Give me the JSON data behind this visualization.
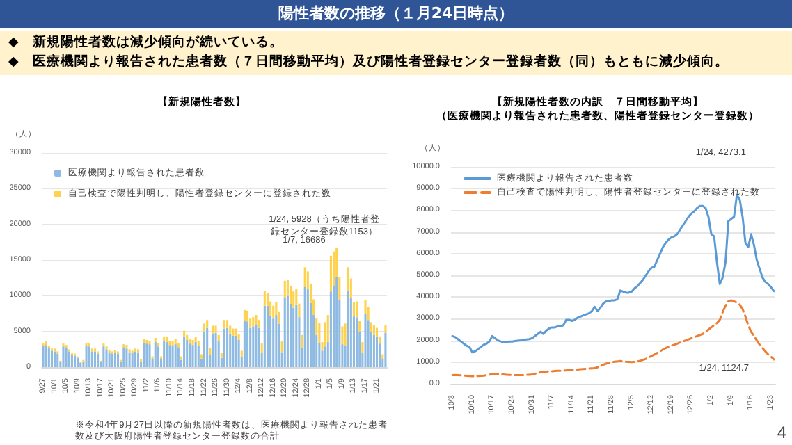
{
  "chart_data": [
    {
      "type": "other",
      "title": "陽性者数の推移（１月24日時点）",
      "annotations": [
        "◆　新規陽性者数は減少傾向が続いている。",
        "◆　医療機関より報告された患者数（７日間移動平均）及び陽性者登録センター登録者数（同）もともに減少傾向。"
      ]
    },
    {
      "type": "bar",
      "title": "【新規陽性者数】",
      "ylabel": "（人）",
      "stacked": true,
      "grid": "y",
      "legend": "top left",
      "ylim": [
        0,
        30000
      ],
      "yticks": [
        0,
        5000,
        10000,
        15000,
        20000,
        25000,
        30000
      ],
      "categories": [
        "9/27",
        null,
        null,
        null,
        "10/1",
        null,
        null,
        null,
        "10/5",
        null,
        null,
        null,
        "10/9",
        null,
        null,
        null,
        "10/13",
        null,
        null,
        null,
        "10/17",
        null,
        null,
        null,
        "10/21",
        null,
        null,
        null,
        "10/25",
        null,
        null,
        null,
        "10/29",
        null,
        null,
        null,
        "11/2",
        null,
        null,
        null,
        "11/6",
        null,
        null,
        null,
        "11/10",
        null,
        null,
        null,
        "11/14",
        null,
        null,
        null,
        "11/18",
        null,
        null,
        null,
        "11/22",
        null,
        null,
        null,
        "11/26",
        null,
        null,
        null,
        "11/30",
        null,
        null,
        null,
        "12/4",
        null,
        null,
        null,
        "12/8",
        null,
        null,
        null,
        "12/12",
        null,
        null,
        null,
        "12/16",
        null,
        null,
        null,
        "12/20",
        null,
        null,
        null,
        "12/24",
        null,
        null,
        null,
        "12/28",
        null,
        null,
        null,
        "1/1",
        null,
        null,
        null,
        "1/5",
        null,
        null,
        null,
        "1/9",
        null,
        null,
        null,
        "1/13",
        null,
        null,
        null,
        "1/17",
        null,
        null,
        null,
        "1/21",
        null,
        null,
        null
      ],
      "series": [
        {
          "name": "医療機関より報告された患者数",
          "color": "#8fbbe3",
          "values": [
            3000,
            3100,
            2700,
            2300,
            2200,
            1900,
            700,
            2900,
            2700,
            2200,
            1700,
            1600,
            1300,
            600,
            800,
            3000,
            2900,
            2200,
            2200,
            1900,
            700,
            2900,
            2500,
            2100,
            1900,
            2000,
            1900,
            800,
            2800,
            2600,
            2100,
            2000,
            2200,
            2100,
            800,
            3400,
            3300,
            3200,
            1100,
            3500,
            2900,
            1100,
            3600,
            3500,
            3100,
            3000,
            3200,
            2800,
            1000,
            4300,
            3800,
            3300,
            3100,
            3500,
            3000,
            1200,
            5000,
            5500,
            1700,
            4700,
            4800,
            3600,
            1300,
            5400,
            5500,
            4700,
            4400,
            4400,
            3800,
            1500,
            6500,
            6400,
            5500,
            5700,
            6000,
            5500,
            2000,
            8600,
            8600,
            7200,
            6800,
            7300,
            6100,
            2100,
            9800,
            10000,
            8900,
            8300,
            8800,
            7000,
            2700,
            11200,
            10900,
            9000,
            7300,
            4500,
            3400,
            2300,
            2900,
            3500,
            10600,
            11300,
            12600,
            9500,
            3200,
            3000,
            10700,
            9700,
            7100,
            7000,
            5000,
            2000,
            7500,
            6600,
            4900,
            4500,
            4300,
            3300,
            1100,
            4775
          ]
        },
        {
          "name": "自己検査で陽性判明し、陽性者登録センターに登録された数",
          "color": "#ffd24d",
          "values": [
            300,
            500,
            300,
            300,
            400,
            300,
            200,
            400,
            400,
            300,
            300,
            300,
            200,
            200,
            200,
            400,
            400,
            400,
            400,
            300,
            200,
            400,
            400,
            300,
            300,
            400,
            300,
            200,
            400,
            500,
            400,
            300,
            400,
            400,
            300,
            500,
            500,
            500,
            400,
            600,
            500,
            400,
            700,
            800,
            600,
            600,
            700,
            600,
            500,
            800,
            700,
            700,
            700,
            700,
            700,
            600,
            1100,
            1100,
            1000,
            1100,
            1000,
            900,
            700,
            1200,
            1100,
            1100,
            1000,
            1000,
            800,
            800,
            1500,
            1500,
            1300,
            1300,
            1300,
            1100,
            1300,
            2100,
            1800,
            2000,
            1800,
            1800,
            1700,
            1600,
            2300,
            2200,
            2500,
            2300,
            2200,
            1900,
            1800,
            2800,
            2500,
            2700,
            2200,
            2400,
            2800,
            1200,
            3400,
            3800,
            5000,
            4900,
            4086,
            3100,
            2500,
            3100,
            3300,
            2700,
            2000,
            2200,
            1500,
            1500,
            1900,
            1800,
            1400,
            1400,
            1200,
            1000,
            700,
            1153
          ]
        }
      ],
      "annotations": [
        "1/7, 16686",
        "1/24, 5928（うち陽性者登録センター登録数1153）",
        "※令和4年9月27日以降の新規陽性者数は、医療機関より報告された患者数及び大阪府陽性者登録センター登録数の合計"
      ]
    },
    {
      "type": "line",
      "title": "【新規陽性者数の内訳　７日間移動平均】",
      "subtitle": "（医療機関より報告された患者数、陽性者登録センター登録数）",
      "ylabel": "（人）",
      "grid": "y",
      "legend": "top left",
      "ylim": [
        0,
        10000
      ],
      "yticks": [
        {
          "value": 0,
          "label": "0.0"
        },
        {
          "value": 1000,
          "label": "1000.0"
        },
        {
          "value": 2000,
          "label": "2000.0"
        },
        {
          "value": 3000,
          "label": "3000.0"
        },
        {
          "value": 4000,
          "label": "4000.0"
        },
        {
          "value": 5000,
          "label": "5000.0"
        },
        {
          "value": 6000,
          "label": "6000.0"
        },
        {
          "value": 7000,
          "label": "7000.0"
        },
        {
          "value": 8000,
          "label": "8000.0"
        },
        {
          "value": 9000,
          "label": "9000.0"
        },
        {
          "value": 10000,
          "label": "10000.0"
        }
      ],
      "categories": [
        "10/3",
        null,
        null,
        null,
        null,
        null,
        null,
        "10/10",
        null,
        null,
        null,
        null,
        null,
        null,
        "10/17",
        null,
        null,
        null,
        null,
        null,
        null,
        "10/24",
        null,
        null,
        null,
        null,
        null,
        null,
        "10/31",
        null,
        null,
        null,
        null,
        null,
        null,
        "11/7",
        null,
        null,
        null,
        null,
        null,
        null,
        "11/14",
        null,
        null,
        null,
        null,
        null,
        null,
        "11/21",
        null,
        null,
        null,
        null,
        null,
        null,
        "11/28",
        null,
        null,
        null,
        null,
        null,
        null,
        "12/5",
        null,
        null,
        null,
        null,
        null,
        null,
        "12/12",
        null,
        null,
        null,
        null,
        null,
        null,
        "12/19",
        null,
        null,
        null,
        null,
        null,
        null,
        "12/26",
        null,
        null,
        null,
        null,
        null,
        null,
        "1/2",
        null,
        null,
        null,
        null,
        null,
        null,
        "1/9",
        null,
        null,
        null,
        null,
        null,
        null,
        "1/16",
        null,
        null,
        null,
        null,
        null,
        null,
        "1/23",
        null
      ],
      "series": [
        {
          "name": "医療機関より報告された患者数",
          "color": "#5b9bd5",
          "values": [
            2200,
            2150,
            2050,
            1950,
            1850,
            1750,
            1700,
            1450,
            1500,
            1600,
            1700,
            1800,
            1850,
            1950,
            2200,
            2100,
            2000,
            1950,
            1920,
            1920,
            1950,
            1950,
            1970,
            1990,
            2000,
            2020,
            2040,
            2060,
            2100,
            2200,
            2300,
            2400,
            2300,
            2450,
            2550,
            2600,
            2600,
            2650,
            2650,
            2700,
            2950,
            2950,
            2900,
            2950,
            3050,
            3100,
            3150,
            3200,
            3250,
            3350,
            3550,
            3350,
            3500,
            3700,
            3800,
            3800,
            3850,
            3850,
            3900,
            4300,
            4250,
            4200,
            4200,
            4250,
            4400,
            4500,
            4650,
            4800,
            5000,
            5200,
            5350,
            5400,
            5700,
            6000,
            6300,
            6500,
            6650,
            6750,
            6800,
            6900,
            7100,
            7300,
            7500,
            7700,
            7850,
            7950,
            8100,
            8200,
            8200,
            8100,
            7700,
            6900,
            6800,
            5600,
            4600,
            4900,
            5600,
            7500,
            7600,
            7700,
            8700,
            8500,
            7700,
            6500,
            6300,
            6900,
            6400,
            5700,
            5300,
            4900,
            4700,
            4600,
            4450,
            4273.1
          ]
        },
        {
          "name": "自己検査で陽性判明し、陽性者登録センターに登録された数",
          "color": "#ed7d31",
          "line_style": "dashed",
          "values": [
            400,
            410,
            400,
            390,
            380,
            370,
            360,
            350,
            350,
            360,
            370,
            380,
            400,
            420,
            450,
            450,
            450,
            440,
            430,
            420,
            410,
            400,
            400,
            400,
            400,
            400,
            410,
            420,
            430,
            460,
            500,
            530,
            550,
            560,
            570,
            580,
            590,
            600,
            600,
            610,
            620,
            630,
            640,
            650,
            660,
            670,
            680,
            690,
            700,
            710,
            720,
            760,
            820,
            880,
            930,
            970,
            1000,
            1020,
            1030,
            1050,
            1040,
            1020,
            1010,
            1000,
            1010,
            1030,
            1060,
            1100,
            1150,
            1220,
            1280,
            1350,
            1420,
            1500,
            1580,
            1650,
            1700,
            1750,
            1800,
            1850,
            1900,
            1950,
            2000,
            2050,
            2100,
            2150,
            2200,
            2250,
            2300,
            2400,
            2500,
            2600,
            2700,
            2800,
            2950,
            3300,
            3600,
            3800,
            3850,
            3800,
            3750,
            3650,
            3450,
            3100,
            2700,
            2400,
            2200,
            2000,
            1800,
            1650,
            1500,
            1350,
            1250,
            1124.7
          ]
        }
      ],
      "annotations": [
        "1/24, 4273.1",
        "1/24, 1124.7",
        "4"
      ]
    }
  ]
}
